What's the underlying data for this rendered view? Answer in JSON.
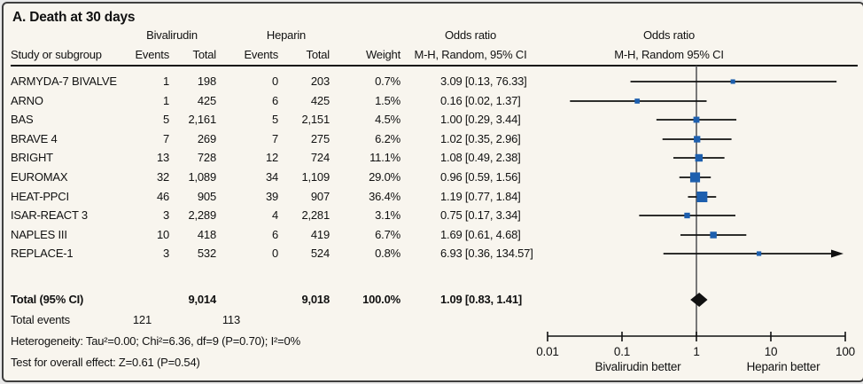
{
  "title": "A. Death at 30 days",
  "colors": {
    "background": "#f8f5ee",
    "border": "#3f3f3f",
    "text": "#111111",
    "marker_blue": "#1d5fae",
    "ci_line_black": "#111111",
    "null_line_gray": "#58585a"
  },
  "table": {
    "group_headers": {
      "bivalirudin": "Bivalirudin",
      "heparin": "Heparin"
    },
    "columns": {
      "study": "Study or subgroup",
      "biv_events": "Events",
      "biv_total": "Total",
      "hep_events": "Events",
      "hep_total": "Total",
      "weight": "Weight",
      "or_line1": "Odds ratio",
      "or_line2": "M-H, Random, 95% CI"
    },
    "plot_header": {
      "line1": "Odds ratio",
      "line2": "M-H, Random 95% CI"
    },
    "rows": [
      {
        "study": "ARMYDA-7 BIVALVE",
        "biv_events": "1",
        "biv_total": "198",
        "hep_events": "0",
        "hep_total": "203",
        "weight": "0.7%",
        "or_ci": "3.09 [0.13, 76.33]"
      },
      {
        "study": "ARNO",
        "biv_events": "1",
        "biv_total": "425",
        "hep_events": "6",
        "hep_total": "425",
        "weight": "1.5%",
        "or_ci": "0.16 [0.02, 1.37]"
      },
      {
        "study": "BAS",
        "biv_events": "5",
        "biv_total": "2,161",
        "hep_events": "5",
        "hep_total": "2,151",
        "weight": "4.5%",
        "or_ci": "1.00 [0.29, 3.44]"
      },
      {
        "study": "BRAVE 4",
        "biv_events": "7",
        "biv_total": "269",
        "hep_events": "7",
        "hep_total": "275",
        "weight": "6.2%",
        "or_ci": "1.02 [0.35, 2.96]"
      },
      {
        "study": "BRIGHT",
        "biv_events": "13",
        "biv_total": "728",
        "hep_events": "12",
        "hep_total": "724",
        "weight": "11.1%",
        "or_ci": "1.08 [0.49, 2.38]"
      },
      {
        "study": "EUROMAX",
        "biv_events": "32",
        "biv_total": "1,089",
        "hep_events": "34",
        "hep_total": "1,109",
        "weight": "29.0%",
        "or_ci": "0.96 [0.59, 1.56]"
      },
      {
        "study": "HEAT-PPCI",
        "biv_events": "46",
        "biv_total": "905",
        "hep_events": "39",
        "hep_total": "907",
        "weight": "36.4%",
        "or_ci": "1.19 [0.77, 1.84]"
      },
      {
        "study": "ISAR-REACT 3",
        "biv_events": "3",
        "biv_total": "2,289",
        "hep_events": "4",
        "hep_total": "2,281",
        "weight": "3.1%",
        "or_ci": "0.75 [0.17, 3.34]"
      },
      {
        "study": "NAPLES III",
        "biv_events": "10",
        "biv_total": "418",
        "hep_events": "6",
        "hep_total": "419",
        "weight": "6.7%",
        "or_ci": "1.69 [0.61, 4.68]"
      },
      {
        "study": "REPLACE-1",
        "biv_events": "3",
        "biv_total": "532",
        "hep_events": "0",
        "hep_total": "524",
        "weight": "0.8%",
        "or_ci": "6.93 [0.36, 134.57]"
      }
    ],
    "total_row": {
      "label": "Total (95% CI)",
      "biv_total": "9,014",
      "hep_total": "9,018",
      "weight": "100.0%",
      "or_ci": "1.09 [0.83, 1.41]"
    },
    "total_events": {
      "label": "Total events",
      "biv": "121",
      "hep": "113"
    },
    "heterogeneity": "Heterogeneity: Tau²=0.00; Chi²=6.36, df=9 (P=0.70); I²=0%",
    "overall_effect": "Test for overall effect: Z=0.61 (P=0.54)"
  },
  "chart_data": {
    "type": "forest",
    "title": "A. Death at 30 days",
    "effect_measure": "Odds ratio, M-H, Random, 95% CI",
    "x_scale": "log",
    "xlim": [
      0.01,
      100
    ],
    "axis_ticks": [
      0.01,
      0.1,
      1,
      10,
      100
    ],
    "null_line": 1,
    "left_label": "Bivalirudin better",
    "right_label": "Heparin better",
    "studies": [
      {
        "name": "ARMYDA-7 BIVALVE",
        "or": 3.09,
        "ci_low": 0.13,
        "ci_high": 76.33,
        "weight_pct": 0.7
      },
      {
        "name": "ARNO",
        "or": 0.16,
        "ci_low": 0.02,
        "ci_high": 1.37,
        "weight_pct": 1.5
      },
      {
        "name": "BAS",
        "or": 1.0,
        "ci_low": 0.29,
        "ci_high": 3.44,
        "weight_pct": 4.5
      },
      {
        "name": "BRAVE 4",
        "or": 1.02,
        "ci_low": 0.35,
        "ci_high": 2.96,
        "weight_pct": 6.2
      },
      {
        "name": "BRIGHT",
        "or": 1.08,
        "ci_low": 0.49,
        "ci_high": 2.38,
        "weight_pct": 11.1
      },
      {
        "name": "EUROMAX",
        "or": 0.96,
        "ci_low": 0.59,
        "ci_high": 1.56,
        "weight_pct": 29.0
      },
      {
        "name": "HEAT-PPCI",
        "or": 1.19,
        "ci_low": 0.77,
        "ci_high": 1.84,
        "weight_pct": 36.4
      },
      {
        "name": "ISAR-REACT 3",
        "or": 0.75,
        "ci_low": 0.17,
        "ci_high": 3.34,
        "weight_pct": 3.1
      },
      {
        "name": "NAPLES III",
        "or": 1.69,
        "ci_low": 0.61,
        "ci_high": 4.68,
        "weight_pct": 6.7
      },
      {
        "name": "REPLACE-1",
        "or": 6.93,
        "ci_low": 0.36,
        "ci_high": 134.57,
        "weight_pct": 0.8
      }
    ],
    "total": {
      "label": "Total (95% CI)",
      "or": 1.09,
      "ci_low": 0.83,
      "ci_high": 1.41,
      "weight_pct": 100.0
    }
  }
}
